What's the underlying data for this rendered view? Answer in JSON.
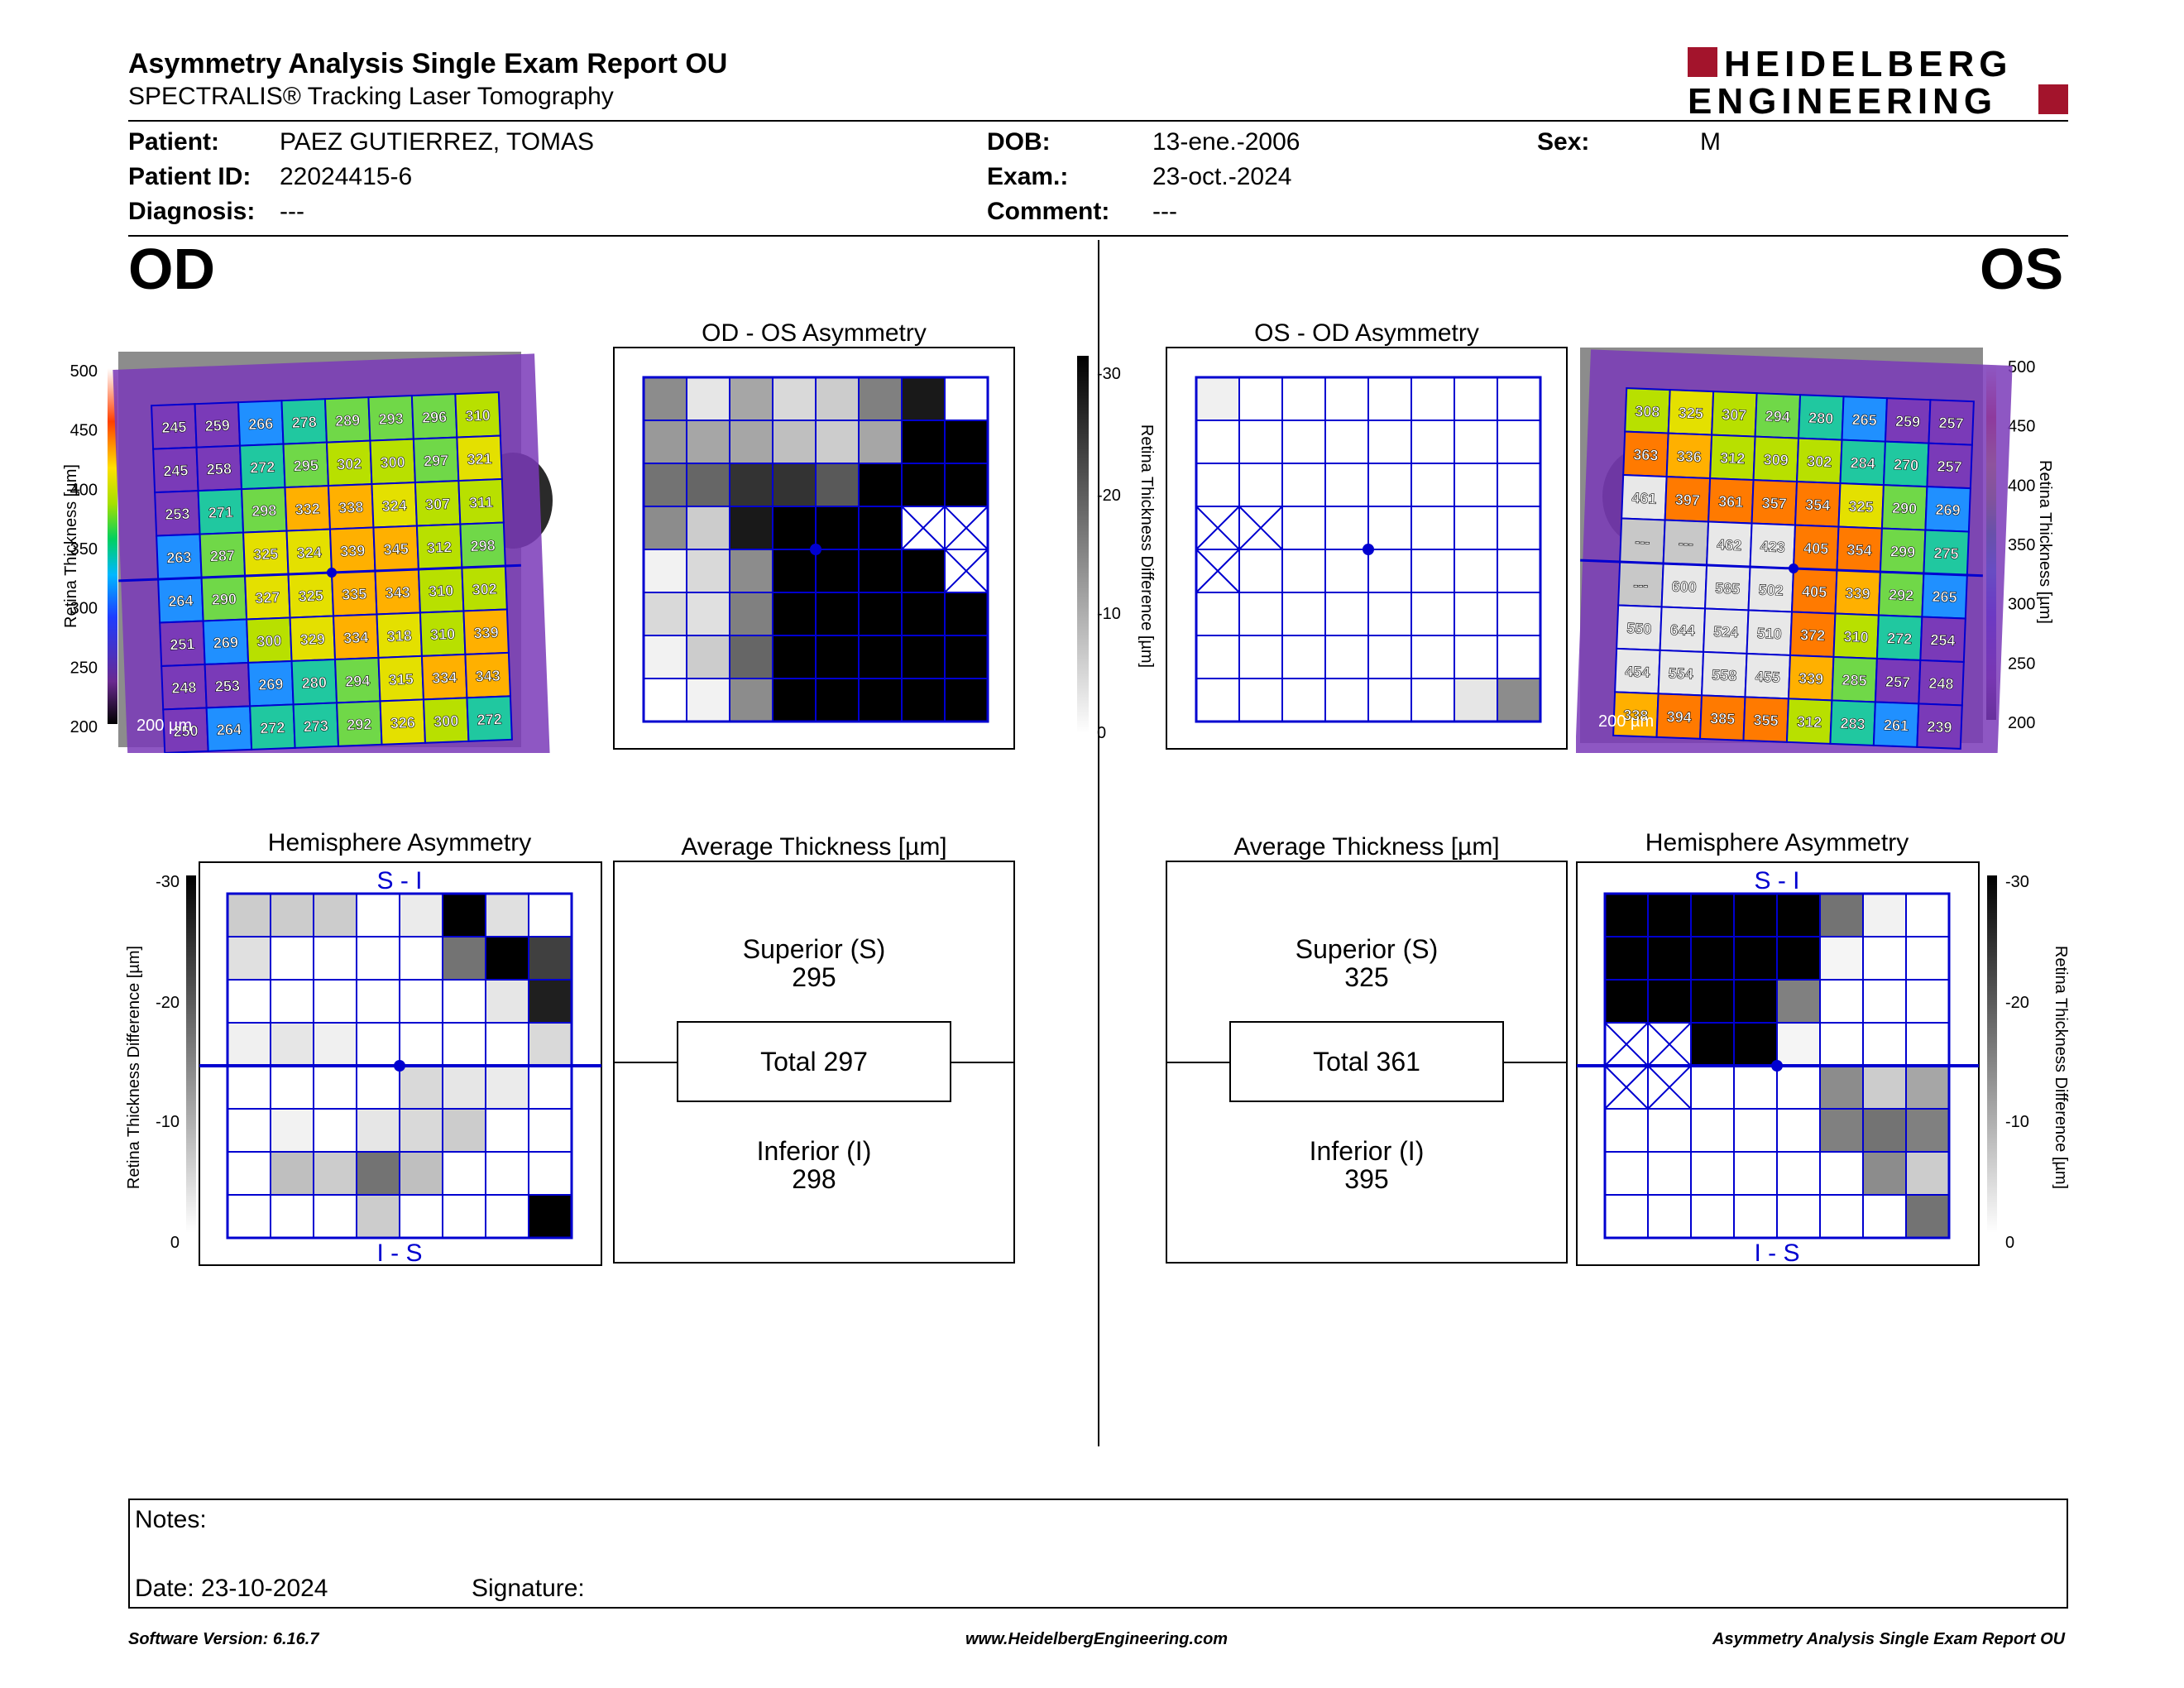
{
  "report": {
    "title": "Asymmetry Analysis Single Exam Report OU",
    "subtitle": "SPECTRALIS® Tracking Laser Tomography",
    "logo_line1": "HEIDELBERG",
    "logo_line2": "ENGINEERING",
    "brand_color": "#a3142c"
  },
  "patient": {
    "patient_label": "Patient:",
    "patient_value": "PAEZ GUTIERREZ, TOMAS",
    "id_label": "Patient ID:",
    "id_value": "22024415-6",
    "diagnosis_label": "Diagnosis:",
    "diagnosis_value": "---",
    "dob_label": "DOB:",
    "dob_value": "13-ene.-2006",
    "exam_label": "Exam.:",
    "exam_value": "23-oct.-2024",
    "comment_label": "Comment:",
    "comment_value": "---",
    "sex_label": "Sex:",
    "sex_value": "M"
  },
  "od": {
    "eye_label": "OD",
    "asym_title": "OD - OS Asymmetry",
    "hemi_title": "Hemisphere Asymmetry",
    "avg_title": "Average Thickness [µm]",
    "hemi_top": "S - I",
    "hemi_bottom": "I - S",
    "superior_label": "Superior (S)",
    "superior_value": "295",
    "total_label": "Total 297",
    "inferior_label": "Inferior (I)",
    "inferior_value": "298",
    "scale_label": "200 µm",
    "thickness": [
      [
        245,
        259,
        266,
        278,
        289,
        293,
        296,
        310
      ],
      [
        245,
        258,
        272,
        295,
        302,
        300,
        297,
        321
      ],
      [
        253,
        271,
        298,
        332,
        338,
        324,
        307,
        311
      ],
      [
        263,
        287,
        325,
        324,
        339,
        345,
        312,
        298
      ],
      [
        264,
        290,
        327,
        325,
        335,
        343,
        310,
        302
      ],
      [
        251,
        269,
        300,
        329,
        334,
        318,
        310,
        339
      ],
      [
        248,
        253,
        269,
        280,
        294,
        315,
        334,
        343
      ],
      [
        250,
        264,
        272,
        273,
        292,
        326,
        300,
        272
      ]
    ],
    "asym_gray": [
      [
        0.45,
        0.1,
        0.35,
        0.15,
        0.2,
        0.5,
        0.9,
        0
      ],
      [
        0.4,
        0.35,
        0.35,
        0.25,
        0.2,
        0.35,
        1,
        1
      ],
      [
        0.55,
        0.6,
        0.8,
        0.8,
        0.65,
        1,
        1,
        1
      ],
      [
        0.45,
        0.2,
        0.9,
        1,
        1,
        1,
        -1,
        -1
      ],
      [
        0.05,
        0.15,
        0.45,
        1,
        1,
        1,
        1,
        -1
      ],
      [
        0.15,
        0.12,
        0.5,
        1,
        1,
        1,
        1,
        1
      ],
      [
        0.05,
        0.2,
        0.6,
        1,
        1,
        1,
        1,
        1
      ],
      [
        0,
        0.05,
        0.45,
        1,
        1,
        1,
        1,
        1
      ]
    ],
    "hemi_gray": [
      [
        0.2,
        0.2,
        0.2,
        0,
        0.08,
        1,
        0.12,
        0
      ],
      [
        0.12,
        0,
        0,
        0,
        0,
        0.55,
        1,
        0.75
      ],
      [
        0,
        0,
        0,
        0,
        0,
        0,
        0.1,
        0.88
      ],
      [
        0.06,
        0.1,
        0.06,
        0,
        0,
        0,
        0,
        0.15
      ],
      [
        0,
        0,
        0,
        0,
        0.15,
        0.1,
        0.08,
        0
      ],
      [
        0,
        0.05,
        0,
        0.1,
        0.15,
        0.2,
        0,
        0
      ],
      [
        0,
        0.25,
        0.2,
        0.55,
        0.25,
        0,
        0,
        0
      ],
      [
        0,
        0,
        0,
        0.2,
        0,
        0,
        0,
        1
      ]
    ]
  },
  "os": {
    "eye_label": "OS",
    "asym_title": "OS - OD Asymmetry",
    "hemi_title": "Hemisphere Asymmetry",
    "avg_title": "Average Thickness [µm]",
    "hemi_top": "S - I",
    "hemi_bottom": "I - S",
    "superior_label": "Superior (S)",
    "superior_value": "325",
    "total_label": "Total 361",
    "inferior_label": "Inferior (I)",
    "inferior_value": "395",
    "scale_label": "200 µm",
    "thickness": [
      [
        "308",
        "325",
        "307",
        "294",
        "280",
        "265",
        "259",
        "257"
      ],
      [
        "363",
        "336",
        "312",
        "309",
        "302",
        "284",
        "270",
        "257"
      ],
      [
        "461",
        "397",
        "361",
        "357",
        "354",
        "325",
        "290",
        "269"
      ],
      [
        "---",
        "---",
        "462",
        "423",
        "405",
        "354",
        "299",
        "275"
      ],
      [
        "---",
        "600",
        "585",
        "502",
        "405",
        "339",
        "292",
        "265"
      ],
      [
        "550",
        "644",
        "524",
        "510",
        "372",
        "310",
        "272",
        "254"
      ],
      [
        "454",
        "554",
        "558",
        "455",
        "339",
        "285",
        "257",
        "248"
      ],
      [
        "338",
        "394",
        "385",
        "355",
        "312",
        "283",
        "261",
        "239"
      ]
    ],
    "asym_gray": [
      [
        0.06,
        0,
        0,
        0,
        0,
        0,
        0,
        0
      ],
      [
        0,
        0,
        0,
        0,
        0,
        0,
        0,
        0
      ],
      [
        0,
        0,
        0,
        0,
        0,
        0,
        0,
        0
      ],
      [
        -1,
        -1,
        0,
        0,
        0,
        0,
        0,
        0
      ],
      [
        -1,
        0,
        0,
        0,
        0,
        0,
        0,
        0
      ],
      [
        0,
        0,
        0,
        0,
        0,
        0,
        0,
        0
      ],
      [
        0,
        0,
        0,
        0,
        0,
        0,
        0,
        0
      ],
      [
        0,
        0,
        0,
        0,
        0,
        0,
        0.1,
        0.45
      ]
    ],
    "hemi_gray": [
      [
        1,
        1,
        1,
        1,
        1,
        0.55,
        0.05,
        0
      ],
      [
        1,
        1,
        1,
        1,
        1,
        0.04,
        0,
        0
      ],
      [
        1,
        1,
        1,
        1,
        0.5,
        0,
        0,
        0
      ],
      [
        -1,
        -1,
        1,
        1,
        0.04,
        0,
        0,
        0
      ],
      [
        -1,
        -1,
        0,
        0,
        0,
        0.45,
        0.2,
        0.35
      ],
      [
        0,
        0,
        0,
        0,
        0,
        0.5,
        0.55,
        0.5
      ],
      [
        0,
        0,
        0,
        0,
        0,
        0,
        0.45,
        0.2
      ],
      [
        0,
        0,
        0,
        0,
        0,
        0,
        0,
        0.55
      ]
    ]
  },
  "colors": {
    "grid_blue": "#0000d0"
  },
  "axes": {
    "thickness_label": "Retina Thickness [µm]",
    "thickness_ticks": [
      "500",
      "450",
      "400",
      "350",
      "300",
      "250",
      "200"
    ],
    "diff_label": "Retina Thickness Difference [µm]",
    "diff_ticks": [
      "-30",
      "-20",
      "-10",
      "0"
    ]
  },
  "notes": {
    "notes_label": "Notes:",
    "date_label": "Date: 23-10-2024",
    "signature_label": "Signature:"
  },
  "footer": {
    "software": "Software Version: 6.16.7",
    "website": "www.HeidelbergEngineering.com",
    "report_name": "Asymmetry Analysis Single Exam Report OU"
  }
}
